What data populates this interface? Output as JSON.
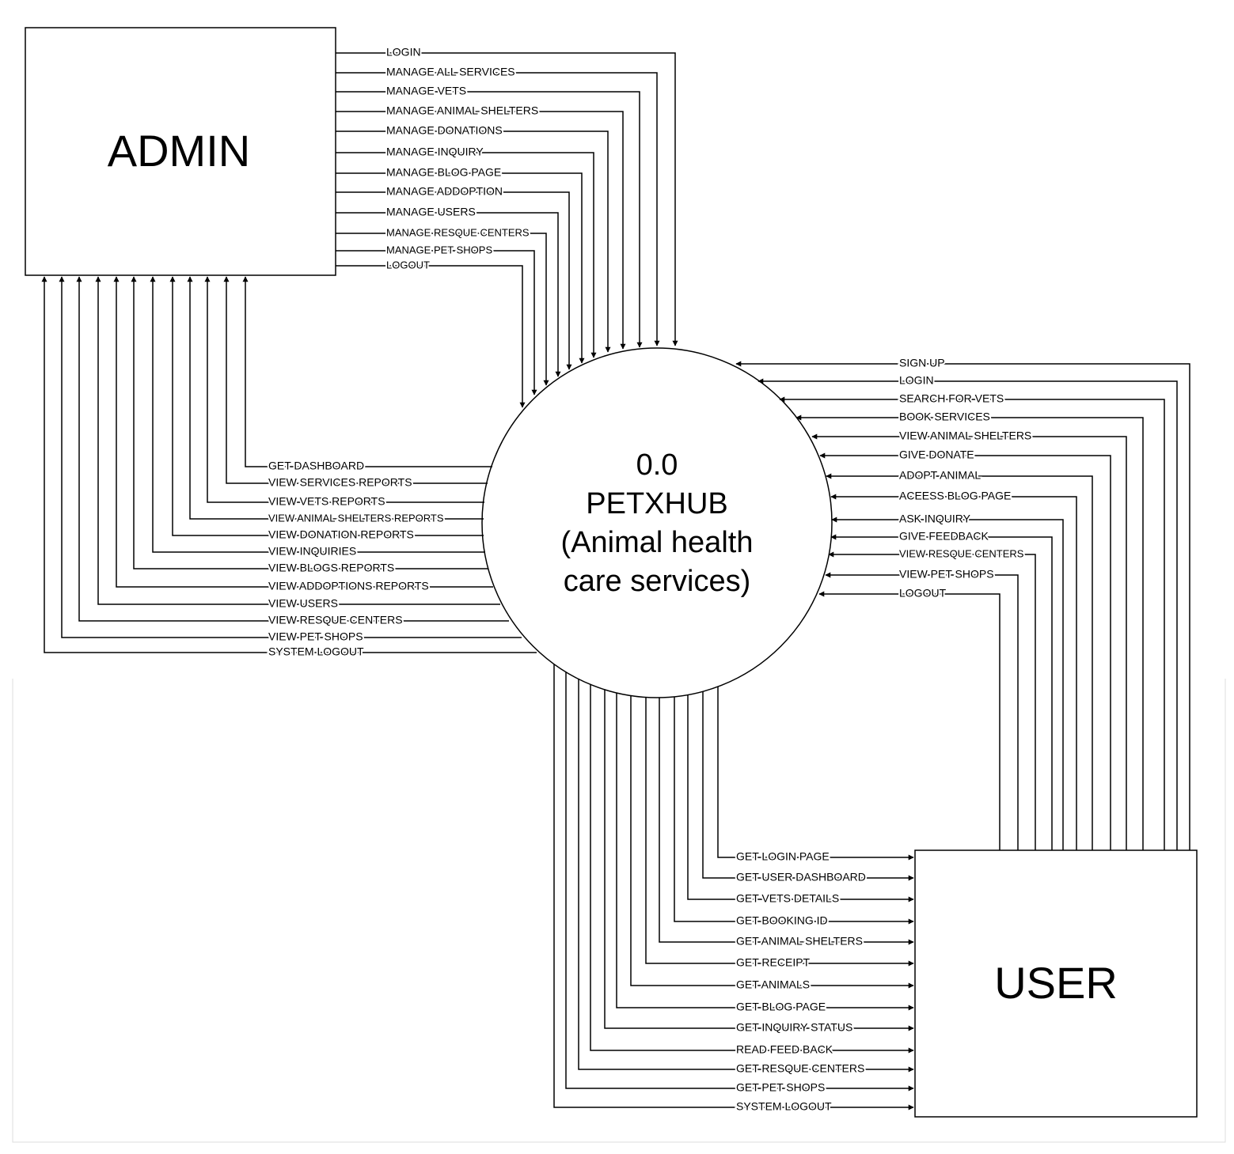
{
  "entities": {
    "admin": {
      "name": "ADMIN"
    },
    "user": {
      "name": "USER"
    }
  },
  "process": {
    "lines": [
      "0.0",
      "PETXHUB",
      "(Animal health",
      "care services)"
    ]
  },
  "admin_to_system": [
    "LOGIN",
    "MANAGE ALL SERVICES",
    "MANAGE VETS",
    "MANAGE ANIMAL SHELTERS",
    "MANAGE DONATIONS",
    "MANAGE INQUIRY",
    "MANAGE BLOG PAGE",
    "MANAGE ADDOPTION",
    "MANAGE USERS",
    "MANAGE RESQUE CENTERS",
    "MANAGE PET SHOPS",
    "LOGOUT"
  ],
  "system_to_admin": [
    "GET DASHBOARD",
    "VIEW SERVICES  REPORTS",
    "VIEW VETS REPORTS",
    "VIEW ANIMAL SHELTERS REPORTS",
    "VIEW DONATION REPORTS",
    "VIEW INQUIRIES",
    "VIEW BLOGS REPORTS",
    "VIEW ADDOPTIONS REPORTS",
    "VIEW USERS",
    "VIEW RESQUE CENTERS",
    "VIEW PET SHOPS",
    "SYSTEM LOGOUT"
  ],
  "user_to_system": [
    "SIGN UP",
    "LOGIN",
    "SEARCH FOR VETS",
    "BOOK SERVICES",
    "VIEW ANIMAL SHELTERS",
    "GIVE DONATE",
    "ADOPT ANIMAL",
    "ACEESS BLOG PAGE",
    "ASK INQUIRY",
    "GIVE FEEDBACK",
    "VIEW RESQUE CENTERS",
    "VIEW PET SHOPS",
    "LOGOUT"
  ],
  "system_to_user": [
    "GET LOGIN PAGE",
    "GET USER DASHBOARD",
    "GET VETS DETAILS",
    "GET BOOKING ID",
    "GET ANIMAL SHELTERS",
    "GET RECEIPT",
    "GET ANIMALS",
    "GET BLOG PAGE",
    "GET INQUIRY STATUS",
    "READ FEED BACK",
    "GET RESQUE CENTERS",
    "GET PET SHOPS",
    "SYSTEM LOGOUT"
  ]
}
